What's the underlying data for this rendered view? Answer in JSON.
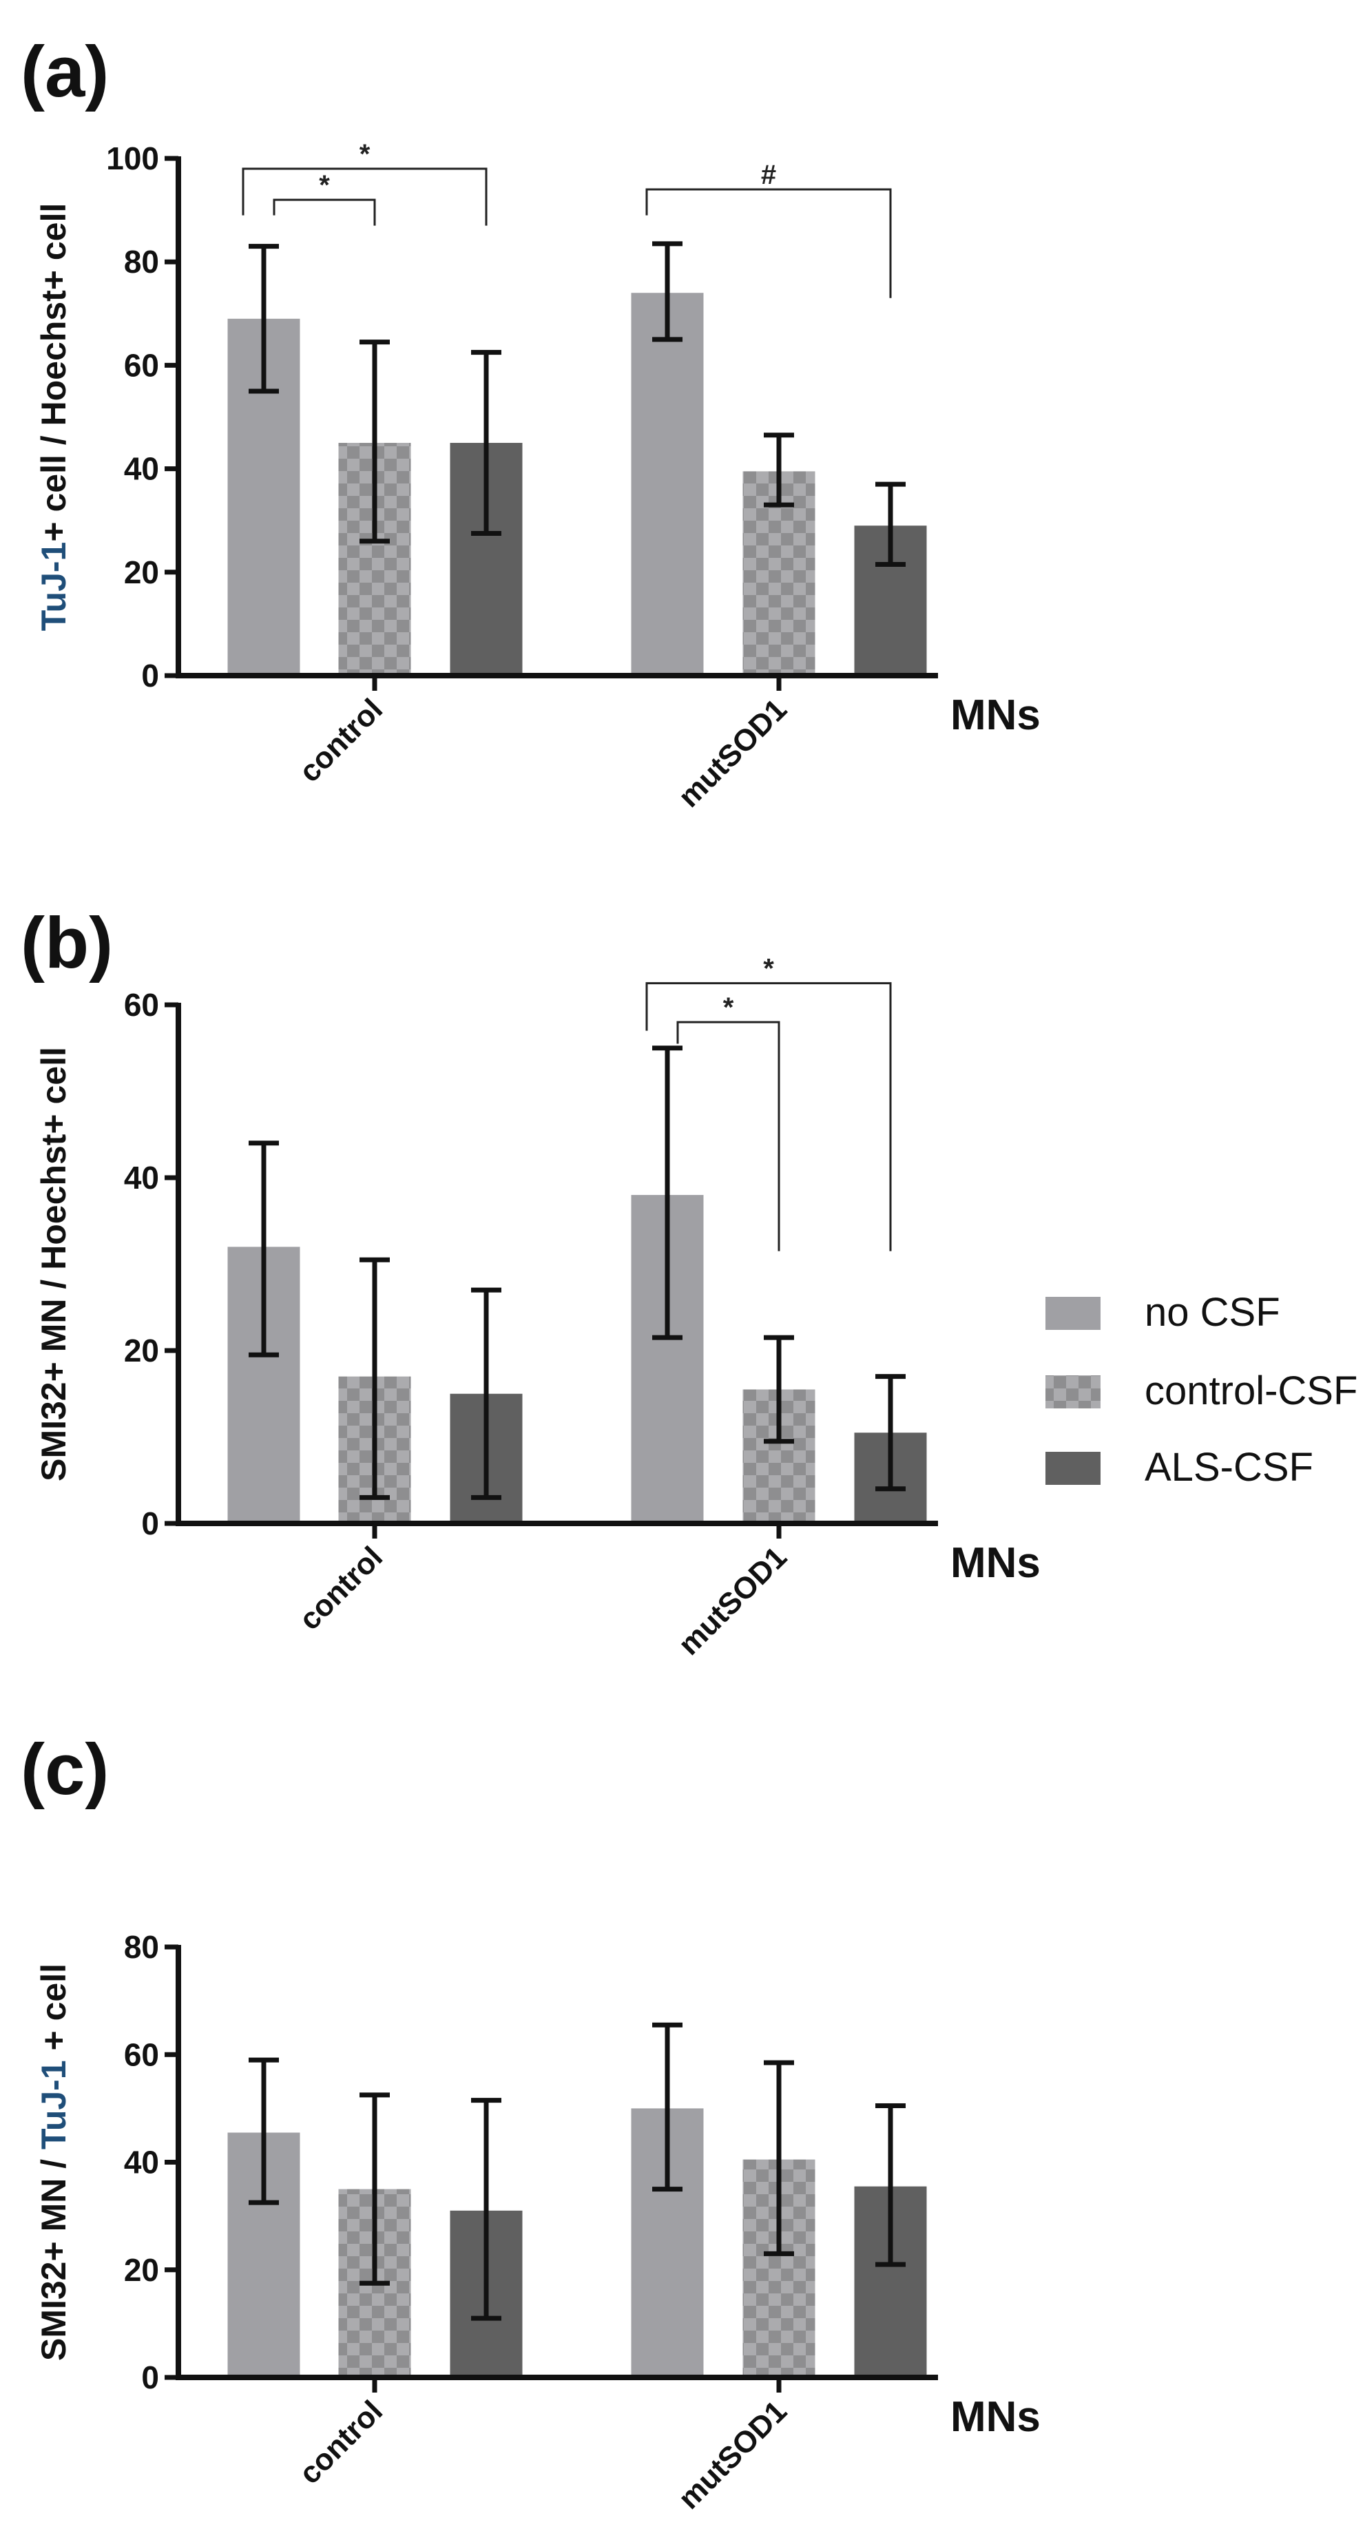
{
  "colors": {
    "no_csf": "#a0a0a4",
    "control_csf_a": "#8e8e90",
    "control_csf_b": "#ababae",
    "als_csf": "#606060",
    "accent_label": "#1f4e79"
  },
  "legend": [
    "no  CSF",
    "control-CSF",
    "ALS-CSF"
  ],
  "chart_data": [
    {
      "type": "bar",
      "panel_label": "(a)",
      "ylabel_parts": [
        "TuJ-1",
        "+ cell / Hoechst+ cell"
      ],
      "xlabel": "MNs",
      "categories": [
        "control",
        "mutSOD1"
      ],
      "ylim": [
        0,
        100
      ],
      "yticks": [
        0,
        20,
        40,
        60,
        80,
        100
      ],
      "series": [
        {
          "name": "no  CSF",
          "values": [
            69,
            74
          ],
          "err_low": [
            55,
            65
          ],
          "err_high": [
            83,
            83.5
          ]
        },
        {
          "name": "control-CSF",
          "values": [
            45,
            39.5
          ],
          "err_low": [
            26,
            33
          ],
          "err_high": [
            64.5,
            46.5
          ]
        },
        {
          "name": "ALS-CSF",
          "values": [
            45,
            29
          ],
          "err_low": [
            27.5,
            21.5
          ],
          "err_high": [
            62.5,
            37
          ]
        }
      ],
      "annotations": [
        {
          "text": "*",
          "group": 0,
          "from": 0,
          "to": 1,
          "y": 92,
          "left_drop": 89,
          "right_drop": 87
        },
        {
          "text": "*",
          "group": 0,
          "from": 0,
          "to": 2,
          "y": 98,
          "left_drop": 89,
          "right_drop": 87
        },
        {
          "text": "#",
          "group": 1,
          "from": 0,
          "to": 2,
          "y": 94,
          "left_drop": 89,
          "right_drop": 73
        }
      ]
    },
    {
      "type": "bar",
      "panel_label": "(b)",
      "ylabel_parts": [
        "",
        "SMI32+ MN / Hoechst+ cell"
      ],
      "xlabel": "MNs",
      "categories": [
        "control",
        "mutSOD1"
      ],
      "ylim": [
        0,
        60
      ],
      "yticks": [
        0,
        20,
        40,
        60
      ],
      "series": [
        {
          "name": "no  CSF",
          "values": [
            32,
            38
          ],
          "err_low": [
            19.5,
            21.5
          ],
          "err_high": [
            44,
            55
          ]
        },
        {
          "name": "control-CSF",
          "values": [
            17,
            15.5
          ],
          "err_low": [
            3,
            9.5
          ],
          "err_high": [
            30.5,
            21.5
          ]
        },
        {
          "name": "ALS-CSF",
          "values": [
            15,
            10.5
          ],
          "err_low": [
            3,
            4
          ],
          "err_high": [
            27,
            17
          ]
        }
      ],
      "annotations": [
        {
          "text": "*",
          "group": 1,
          "from": 0,
          "to": 1,
          "y": 58,
          "left_drop": 55.5,
          "right_drop": 31.5
        },
        {
          "text": "*",
          "group": 1,
          "from": 0,
          "to": 2,
          "y": 62.5,
          "left_drop": 57,
          "right_drop": 31.5
        }
      ]
    },
    {
      "type": "bar",
      "panel_label": "(c)",
      "ylabel_parts": [
        "SMI32+ MN / ",
        "TuJ-1",
        " + cell"
      ],
      "xlabel": "MNs",
      "categories": [
        "control",
        "mutSOD1"
      ],
      "ylim": [
        0,
        80
      ],
      "yticks": [
        0,
        20,
        40,
        60,
        80
      ],
      "series": [
        {
          "name": "no  CSF",
          "values": [
            45.5,
            50
          ],
          "err_low": [
            32.5,
            35
          ],
          "err_high": [
            59,
            65.5
          ]
        },
        {
          "name": "control-CSF",
          "values": [
            35,
            40.5
          ],
          "err_low": [
            17.5,
            23
          ],
          "err_high": [
            52.5,
            58.5
          ]
        },
        {
          "name": "ALS-CSF",
          "values": [
            31,
            35.5
          ],
          "err_low": [
            11,
            21
          ],
          "err_high": [
            51.5,
            50.5
          ]
        }
      ],
      "annotations": []
    }
  ]
}
